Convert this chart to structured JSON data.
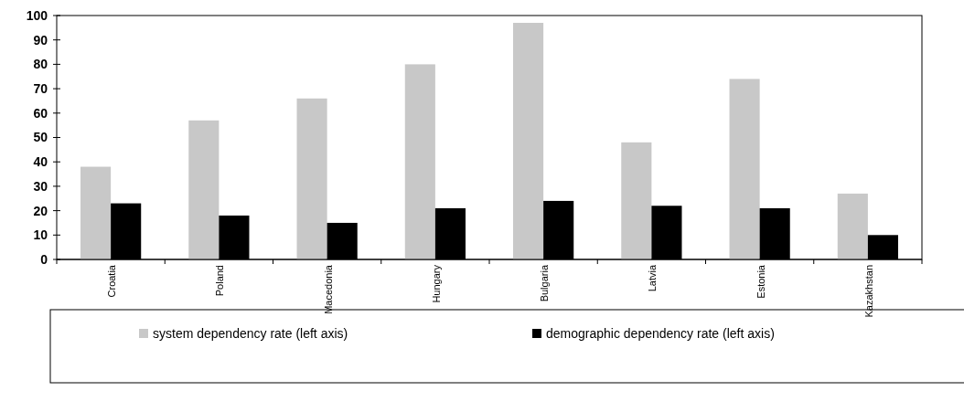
{
  "chart_data": {
    "type": "bar",
    "categories": [
      "Croatia",
      "Poland",
      "Macedonia",
      "Hungary",
      "Bulgaria",
      "Latvia",
      "Estonia",
      "Kazakhstan"
    ],
    "series": [
      {
        "name": "system dependency rate (left axis)",
        "color": "#c8c8c8",
        "values": [
          38,
          57,
          66,
          80,
          97,
          48,
          74,
          27
        ]
      },
      {
        "name": "demographic dependency rate (left axis)",
        "color": "#000000",
        "values": [
          23,
          18,
          15,
          21,
          24,
          22,
          21,
          10
        ]
      }
    ],
    "ylim": [
      0,
      100
    ],
    "yticks": [
      0,
      10,
      20,
      30,
      40,
      50,
      60,
      70,
      80,
      90,
      100
    ],
    "legend": "bottom"
  }
}
